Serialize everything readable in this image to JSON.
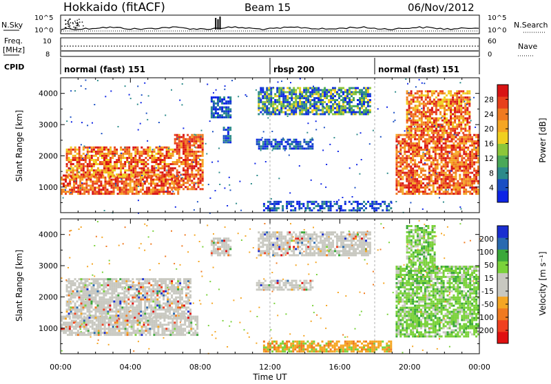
{
  "header": {
    "station": "Hokkaido (fitACF)",
    "beam": "Beam 15",
    "date": "06/Nov/2012"
  },
  "top_strip": {
    "left_label": "N.Sky",
    "left_ticks": [
      "10^5",
      "10^0"
    ],
    "right_label": "N.Search",
    "right_ticks": [
      "10^5",
      "10^0"
    ]
  },
  "freq_strip": {
    "left_label_line1": "Freq.",
    "left_label_line2": "[MHz]",
    "left_ticks": [
      "10",
      "8"
    ],
    "right_label": "Nave",
    "right_ticks": [
      "60",
      "0"
    ]
  },
  "cpid": {
    "label": "CPID",
    "segments": [
      {
        "start_hour": 0,
        "end_hour": 12,
        "name": "normal (fast) 151"
      },
      {
        "start_hour": 12,
        "end_hour": 18,
        "name": "rbsp 200"
      },
      {
        "start_hour": 18,
        "end_hour": 24,
        "name": "normal (fast) 151"
      }
    ]
  },
  "chart_data": [
    {
      "type": "heatmap",
      "panel": "power",
      "ylabel": "Slant Range [km]",
      "xlim_hours": [
        0,
        24
      ],
      "ylim_km": [
        180,
        4500
      ],
      "yticks": [
        1000,
        2000,
        3000,
        4000
      ],
      "colorbar": {
        "label": "Power [dB]",
        "ticks": [
          4,
          8,
          12,
          16,
          20,
          24,
          28
        ],
        "range": [
          0,
          32
        ],
        "colors": [
          "#0d24e6",
          "#1a4fc4",
          "#2c8a8a",
          "#4aa858",
          "#8cc63a",
          "#f0d020",
          "#f5a623",
          "#f07a20",
          "#e8401c",
          "#d81414"
        ]
      },
      "regions": [
        {
          "t0": 0.0,
          "t1": 6.8,
          "r0": 750,
          "r1": 1400,
          "level": "high"
        },
        {
          "t0": 0.3,
          "t1": 6.5,
          "r0": 1300,
          "r1": 2300,
          "level": "mid"
        },
        {
          "t0": 6.5,
          "t1": 8.2,
          "r0": 900,
          "r1": 2700,
          "level": "high"
        },
        {
          "t0": 8.6,
          "t1": 9.8,
          "r0": 3200,
          "r1": 3900,
          "level": "low"
        },
        {
          "t0": 9.3,
          "t1": 9.8,
          "r0": 2400,
          "r1": 3000,
          "level": "low"
        },
        {
          "t0": 11.2,
          "t1": 14.5,
          "r0": 2200,
          "r1": 2550,
          "level": "low"
        },
        {
          "t0": 11.3,
          "t1": 17.8,
          "r0": 3300,
          "r1": 4200,
          "level": "lowmid"
        },
        {
          "t0": 19.2,
          "t1": 24.0,
          "r0": 750,
          "r1": 2700,
          "level": "high"
        },
        {
          "t0": 19.8,
          "t1": 23.5,
          "r0": 2700,
          "r1": 4100,
          "level": "mid"
        },
        {
          "t0": 11.6,
          "t1": 19.0,
          "r0": 220,
          "r1": 560,
          "level": "low"
        }
      ]
    },
    {
      "type": "heatmap",
      "panel": "velocity",
      "ylabel": "Slant Range [km]",
      "xlabel": "Time UT",
      "xlim_hours": [
        0,
        24
      ],
      "ylim_km": [
        180,
        4500
      ],
      "yticks": [
        1000,
        2000,
        3000,
        4000
      ],
      "xticks": [
        "00:00",
        "04:00",
        "08:00",
        "12:00",
        "16:00",
        "20:00",
        "00:00"
      ],
      "colorbar": {
        "label": "Velocity [m s⁻¹]",
        "ticks": [
          200,
          100,
          50,
          15,
          -15,
          -50,
          -100,
          -200
        ],
        "range": [
          -250,
          250
        ],
        "colors": [
          "#e01010",
          "#f04020",
          "#f07a20",
          "#f5a623",
          "#c8c8c0",
          "#c8c8c0",
          "#7ad23a",
          "#3aa83a",
          "#2a6ab0",
          "#1a2ed0"
        ]
      },
      "regions": [
        {
          "t0": 0.0,
          "t1": 7.9,
          "r0": 750,
          "r1": 1400,
          "level": "gs"
        },
        {
          "t0": 0.3,
          "t1": 7.5,
          "r0": 1300,
          "r1": 2600,
          "level": "gs"
        },
        {
          "t0": 8.6,
          "t1": 9.8,
          "r0": 3300,
          "r1": 3900,
          "level": "gs"
        },
        {
          "t0": 11.2,
          "t1": 14.5,
          "r0": 2200,
          "r1": 2550,
          "level": "gs"
        },
        {
          "t0": 11.3,
          "t1": 17.8,
          "r0": 3300,
          "r1": 4100,
          "level": "gs"
        },
        {
          "t0": 19.2,
          "t1": 24.0,
          "r0": 700,
          "r1": 3000,
          "level": "pos"
        },
        {
          "t0": 19.8,
          "t1": 21.5,
          "r0": 3000,
          "r1": 4300,
          "level": "pos"
        },
        {
          "t0": 11.6,
          "t1": 19.0,
          "r0": 220,
          "r1": 600,
          "level": "neg"
        }
      ]
    }
  ]
}
